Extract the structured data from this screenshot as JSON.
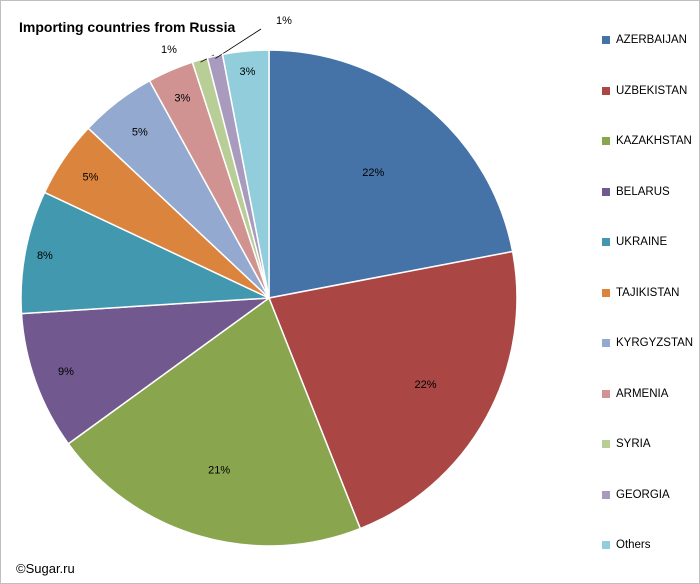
{
  "copyright": "©Sugar.ru",
  "chart_data": {
    "type": "pie",
    "title": "Importing countries from Russia",
    "legend_position": "right",
    "slices": [
      {
        "label": "AZERBAIJAN",
        "value": 22,
        "display": "22%",
        "color": "#4572A7"
      },
      {
        "label": "UZBEKISTAN",
        "value": 22,
        "display": "22%",
        "color": "#AA4643"
      },
      {
        "label": "KAZAKHSTAN",
        "value": 21,
        "display": "21%",
        "color": "#89A54E"
      },
      {
        "label": "BELARUS",
        "value": 9,
        "display": "9%",
        "color": "#71588F"
      },
      {
        "label": "UKRAINE",
        "value": 8,
        "display": "8%",
        "color": "#4198AF"
      },
      {
        "label": "TAJIKISTAN",
        "value": 5,
        "display": "5%",
        "color": "#DB843D"
      },
      {
        "label": "KYRGYZSTAN",
        "value": 5,
        "display": "5%",
        "color": "#93A9CF"
      },
      {
        "label": "ARMENIA",
        "value": 3,
        "display": "3%",
        "color": "#D19392"
      },
      {
        "label": "SYRIA",
        "value": 1,
        "display": "1%",
        "color": "#B9CD96"
      },
      {
        "label": "GEORGIA",
        "value": 1,
        "display": "1%",
        "color": "#A99BBD"
      },
      {
        "label": "Others",
        "value": 3,
        "display": "3%",
        "color": "#92CDDC"
      }
    ]
  }
}
